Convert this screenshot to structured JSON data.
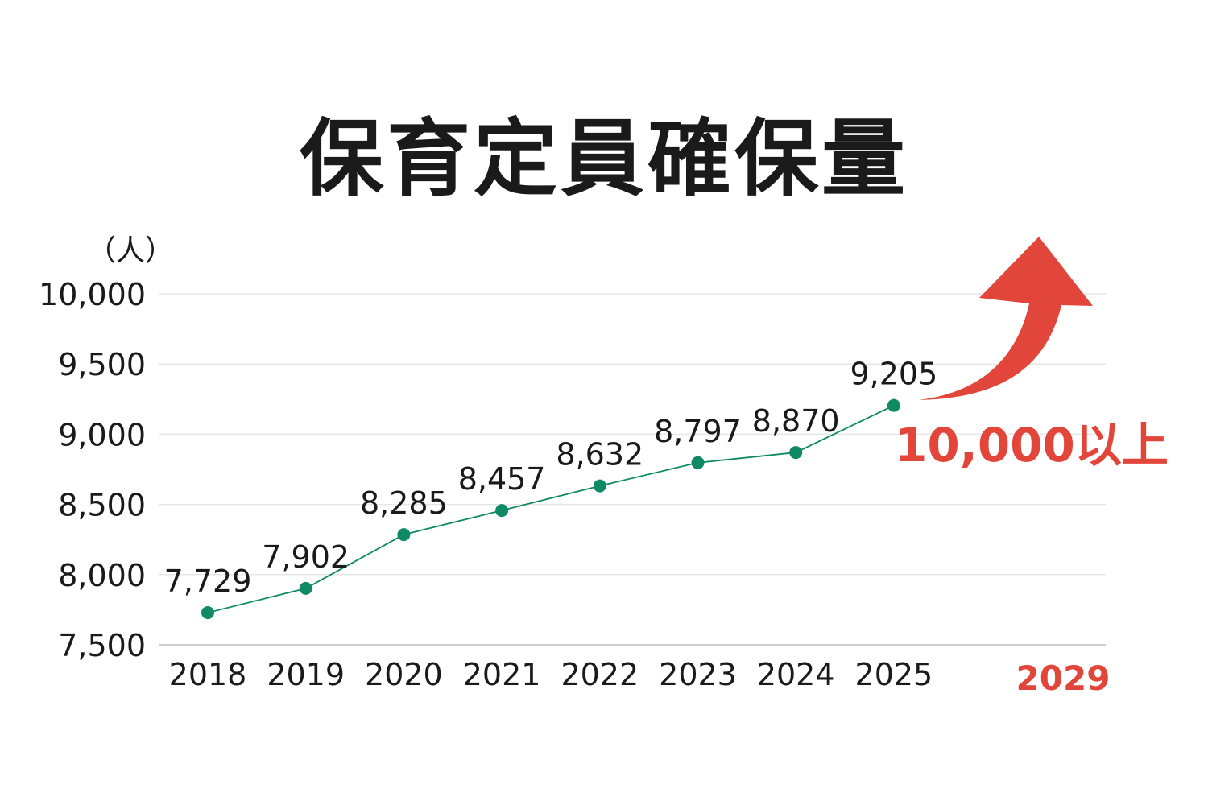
{
  "title": "保育定員確保量",
  "unit_label": "（人）",
  "colors": {
    "line": "#0f8a62",
    "point": "#0f8a62",
    "target": "#e2463b",
    "text": "#1a1a1a"
  },
  "chart_data": {
    "type": "line",
    "title": "保育定員確保量",
    "ylabel": "（人）",
    "xlabel": "",
    "categories": [
      "2018",
      "2019",
      "2020",
      "2021",
      "2022",
      "2023",
      "2024",
      "2025",
      "2029"
    ],
    "ylim": [
      7500,
      10000
    ],
    "yticks": [
      "7,500",
      "8,000",
      "8,500",
      "9,000",
      "9,500",
      "10,000"
    ],
    "ytick_values": [
      7500,
      8000,
      8500,
      9000,
      9500,
      10000
    ],
    "series": [
      {
        "x": [
          "2018",
          "2019",
          "2020",
          "2021",
          "2022",
          "2023",
          "2024",
          "2025"
        ],
        "values": [
          7729,
          7902,
          8285,
          8457,
          8632,
          8797,
          8870,
          9205
        ],
        "labels": [
          "7,729",
          "7,902",
          "8,285",
          "8,457",
          "8,632",
          "8,797",
          "8,870",
          "9,205"
        ]
      }
    ],
    "annotation": {
      "year": "2029",
      "label": "10,000以上",
      "arrow": "up-right"
    },
    "grid": true,
    "legend": "none"
  }
}
